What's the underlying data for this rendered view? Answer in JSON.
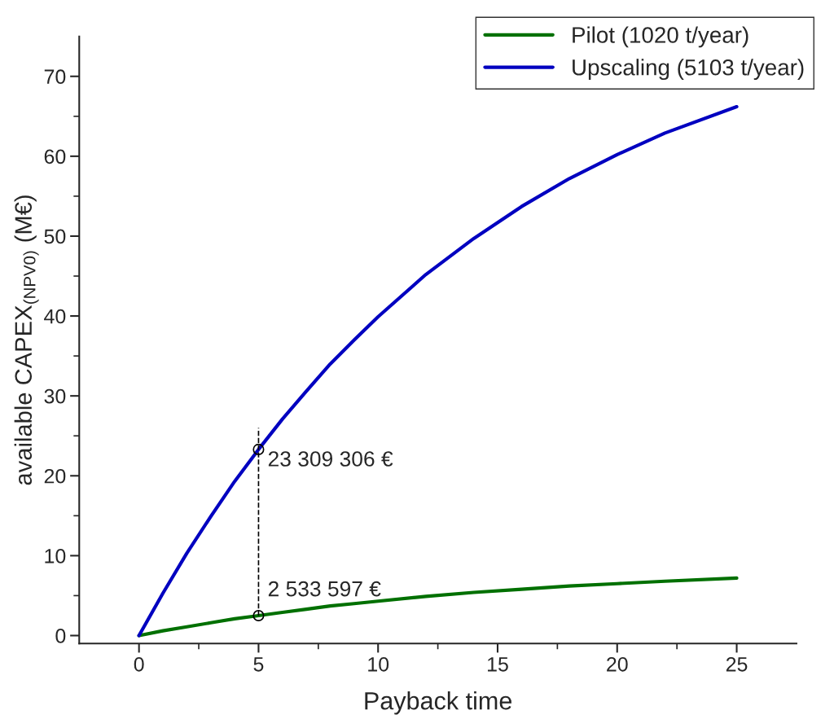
{
  "chart_data": {
    "type": "line",
    "xlabel": "Payback time",
    "ylabel": "available CAPEX$_{(NPV0)}$ (M€)",
    "xlim": [
      -2.5,
      27.5
    ],
    "ylim": [
      -1,
      75
    ],
    "xticks": [
      0,
      {
        "value": 2.5,
        "label": null
      },
      5,
      {
        "value": 7.5,
        "label": null
      },
      10,
      {
        "value": 12.5,
        "label": null
      },
      15,
      {
        "value": 17.5,
        "label": null
      },
      20,
      {
        "value": 22.5,
        "label": null
      },
      25
    ],
    "yticks": [
      0,
      {
        "value": 5,
        "label": null
      },
      10,
      {
        "value": 15,
        "label": null
      },
      20,
      {
        "value": 25,
        "label": null
      },
      30,
      {
        "value": 35,
        "label": null
      },
      40,
      {
        "value": 45,
        "label": null
      },
      50,
      {
        "value": 55,
        "label": null
      },
      60,
      {
        "value": 65,
        "label": null
      },
      70
    ],
    "grid": false,
    "legend": "top right",
    "line_style": "solid",
    "marker": "none",
    "series": [
      {
        "name": "Pilot (1020 t/year)",
        "color": "#007000",
        "x": [
          0,
          1,
          2,
          3,
          4,
          5,
          6,
          7,
          8,
          9,
          10,
          12,
          14,
          16,
          18,
          20,
          22,
          25
        ],
        "values": [
          0,
          0.6,
          1.1,
          1.6,
          2.1,
          2.5,
          2.9,
          3.3,
          3.7,
          4,
          4.3,
          4.9,
          5.4,
          5.8,
          6.2,
          6.5,
          6.8,
          7.2
        ]
      },
      {
        "name": "Upscaling (5103 t/year)",
        "color": "#0000c0",
        "x": [
          0,
          1,
          2,
          3,
          4,
          5,
          6,
          7,
          8,
          9,
          10,
          12,
          14,
          16,
          18,
          20,
          22,
          25
        ],
        "values": [
          0,
          5.3,
          10.3,
          14.9,
          19.3,
          23.3,
          27.1,
          30.6,
          34,
          37,
          39.9,
          45.2,
          49.7,
          53.7,
          57.2,
          60.2,
          62.9,
          66.2
        ]
      },
      {
        "type": "line",
        "color": "#000000",
        "line_style": "dashed",
        "x": [
          5,
          5
        ],
        "values": [
          2.5,
          26
        ]
      },
      {
        "type": "scatter",
        "color": "#000000",
        "marker": "circle",
        "x": [
          5,
          5
        ],
        "values": [
          23.3,
          2.5
        ]
      }
    ],
    "annotations": [
      {
        "text": "23 309 306 €",
        "x": 5,
        "y": 23.3
      },
      {
        "text": "2 533 597 €",
        "x": 5,
        "y": 2.5
      }
    ]
  }
}
